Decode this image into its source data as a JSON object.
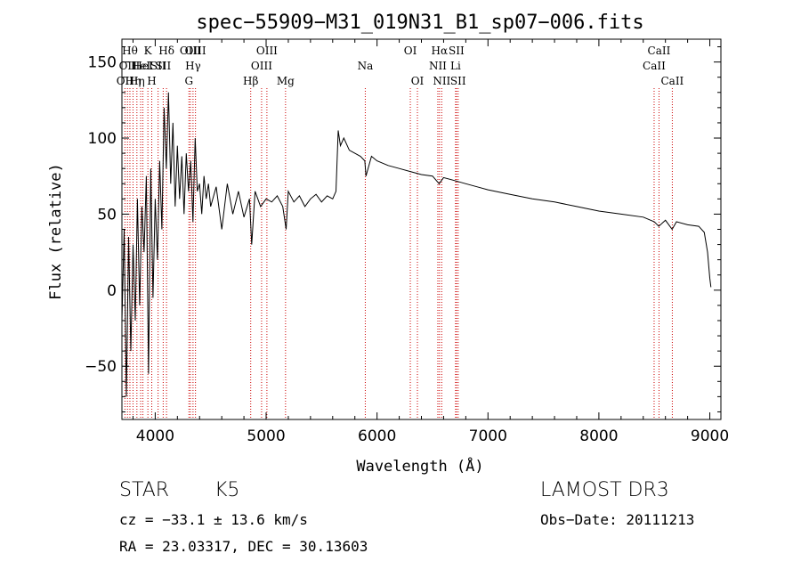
{
  "chart_data": {
    "type": "line",
    "title": "spec−55909−M31_019N31_B1_sp07−006.fits",
    "xlabel": "Wavelength (Å)",
    "ylabel": "Flux (relative)",
    "xlim": [
      3700,
      9100
    ],
    "ylim": [
      -85,
      165
    ],
    "x_ticks": [
      4000,
      5000,
      6000,
      7000,
      8000,
      9000
    ],
    "x_tick_labels": [
      "4000",
      "5000",
      "6000",
      "7000",
      "8000",
      "9000"
    ],
    "y_ticks": [
      -50,
      0,
      50,
      100,
      150
    ],
    "y_tick_labels": [
      "−50",
      "0",
      "50",
      "100",
      "150"
    ],
    "grid": false,
    "line_color": "#000000",
    "marker_color": "#cc0000",
    "series": [
      {
        "name": "flux",
        "x": [
          3700,
          3720,
          3740,
          3760,
          3780,
          3800,
          3820,
          3840,
          3860,
          3880,
          3900,
          3920,
          3940,
          3960,
          3980,
          4000,
          4020,
          4040,
          4060,
          4080,
          4100,
          4120,
          4140,
          4160,
          4180,
          4200,
          4220,
          4240,
          4260,
          4280,
          4300,
          4320,
          4340,
          4360,
          4380,
          4400,
          4420,
          4440,
          4460,
          4480,
          4500,
          4550,
          4600,
          4650,
          4700,
          4750,
          4800,
          4850,
          4870,
          4900,
          4950,
          5000,
          5050,
          5100,
          5150,
          5180,
          5200,
          5250,
          5300,
          5350,
          5400,
          5450,
          5500,
          5550,
          5600,
          5630,
          5650,
          5670,
          5700,
          5750,
          5800,
          5850,
          5890,
          5900,
          5950,
          6000,
          6100,
          6200,
          6300,
          6400,
          6500,
          6560,
          6600,
          6700,
          6800,
          6900,
          7000,
          7200,
          7400,
          7600,
          7800,
          8000,
          8200,
          8400,
          8500,
          8540,
          8600,
          8660,
          8700,
          8800,
          8900,
          8950,
          8980,
          9000,
          9010
        ],
        "y": [
          -20,
          40,
          -70,
          35,
          -40,
          30,
          -20,
          60,
          -10,
          55,
          25,
          75,
          -55,
          80,
          -5,
          60,
          20,
          85,
          40,
          120,
          80,
          130,
          70,
          110,
          55,
          95,
          60,
          88,
          50,
          90,
          65,
          85,
          45,
          100,
          65,
          70,
          50,
          75,
          60,
          70,
          55,
          68,
          40,
          70,
          50,
          65,
          48,
          60,
          30,
          65,
          55,
          60,
          58,
          62,
          55,
          40,
          65,
          58,
          62,
          55,
          60,
          63,
          58,
          62,
          60,
          65,
          105,
          95,
          100,
          92,
          90,
          88,
          85,
          75,
          88,
          85,
          82,
          80,
          78,
          76,
          75,
          70,
          74,
          72,
          70,
          68,
          66,
          63,
          60,
          58,
          55,
          52,
          50,
          48,
          45,
          42,
          46,
          40,
          45,
          43,
          42,
          38,
          25,
          8,
          2
        ]
      }
    ],
    "line_markers": [
      {
        "wavelength": 3727,
        "label": "OII",
        "row": 2
      },
      {
        "wavelength": 3750,
        "label": "OII",
        "row": 1
      },
      {
        "wavelength": 3772,
        "label": "Hθ",
        "row": 0
      },
      {
        "wavelength": 3800,
        "label": "Hη",
        "row": 2
      },
      {
        "wavelength": 3835,
        "label": "Hη",
        "row": 2
      },
      {
        "wavelength": 3869,
        "label": "HeI",
        "row": 1
      },
      {
        "wavelength": 3889,
        "label": "HeI",
        "row": 1
      },
      {
        "wavelength": 3934,
        "label": "K",
        "row": 0
      },
      {
        "wavelength": 3969,
        "label": "H",
        "row": 2
      },
      {
        "wavelength": 4026,
        "label": "SII",
        "row": 1
      },
      {
        "wavelength": 4072,
        "label": "SII",
        "row": 1
      },
      {
        "wavelength": 4102,
        "label": "Hδ",
        "row": 0
      },
      {
        "wavelength": 4304,
        "label": "G",
        "row": 2
      },
      {
        "wavelength": 4317,
        "label": "OIII",
        "row": 0
      },
      {
        "wavelength": 4341,
        "label": "Hγ",
        "row": 1
      },
      {
        "wavelength": 4363,
        "label": "OIII",
        "row": 0
      },
      {
        "wavelength": 4861,
        "label": "Hβ",
        "row": 2
      },
      {
        "wavelength": 4959,
        "label": "OIII",
        "row": 1
      },
      {
        "wavelength": 5007,
        "label": "OIII",
        "row": 0
      },
      {
        "wavelength": 5175,
        "label": "Mg",
        "row": 2
      },
      {
        "wavelength": 5894,
        "label": "Na",
        "row": 1
      },
      {
        "wavelength": 6300,
        "label": "OI",
        "row": 0
      },
      {
        "wavelength": 6364,
        "label": "OI",
        "row": 2
      },
      {
        "wavelength": 6548,
        "label": "NII",
        "row": 1
      },
      {
        "wavelength": 6563,
        "label": "Hα",
        "row": 0
      },
      {
        "wavelength": 6583,
        "label": "NII",
        "row": 2
      },
      {
        "wavelength": 6708,
        "label": "Li",
        "row": 1
      },
      {
        "wavelength": 6716,
        "label": "SII",
        "row": 0
      },
      {
        "wavelength": 6731,
        "label": "SII",
        "row": 2
      },
      {
        "wavelength": 8498,
        "label": "CaII",
        "row": 1
      },
      {
        "wavelength": 8542,
        "label": "CaII",
        "row": 0
      },
      {
        "wavelength": 8662,
        "label": "CaII",
        "row": 2
      }
    ]
  },
  "info": {
    "class_text": "STAR",
    "subclass_text": "K5",
    "survey_text": "LAMOST DR3",
    "cz_text": "cz = −33.1 ± 13.6 km/s",
    "obs_date_text": "Obs−Date: 20111213",
    "radec_text": "RA =  23.03317, DEC =  30.13603"
  }
}
